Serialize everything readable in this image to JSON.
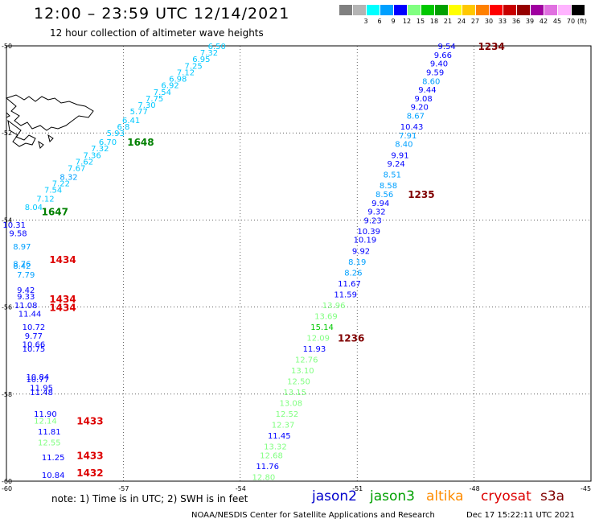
{
  "header": {
    "title": "12:00 – 23:59 UTC 12/14/2021",
    "subtitle": "12 hour collection of altimeter wave heights"
  },
  "colorbar": {
    "unit": "(ft)",
    "cells": [
      {
        "label": "",
        "color": "#808080"
      },
      {
        "label": "3",
        "color": "#b4b4b4"
      },
      {
        "label": "6",
        "color": "#00ffff"
      },
      {
        "label": "9",
        "color": "#00a0ff"
      },
      {
        "label": "12",
        "color": "#0000ff"
      },
      {
        "label": "15",
        "color": "#80ff80"
      },
      {
        "label": "18",
        "color": "#00c800"
      },
      {
        "label": "21",
        "color": "#00a000"
      },
      {
        "label": "24",
        "color": "#ffff00"
      },
      {
        "label": "27",
        "color": "#ffc800"
      },
      {
        "label": "30",
        "color": "#ff8000"
      },
      {
        "label": "33",
        "color": "#ff0000"
      },
      {
        "label": "36",
        "color": "#c80000"
      },
      {
        "label": "39",
        "color": "#960000"
      },
      {
        "label": "42",
        "color": "#a000a0"
      },
      {
        "label": "45",
        "color": "#e070e0"
      },
      {
        "label": "70",
        "color": "#ffb4ff"
      },
      {
        "label": "",
        "color": "#000000"
      }
    ]
  },
  "axes": {
    "lat_labels": [
      "-50",
      "-52",
      "-54",
      "-56",
      "-58",
      "-60"
    ],
    "lon_labels": [
      "-60",
      "-57",
      "-54",
      "-51",
      "-48",
      "-45"
    ],
    "lon_range": [
      -60,
      -45
    ],
    "lat_range": [
      -60,
      -50
    ],
    "grid": true
  },
  "footer": {
    "note": "note: 1) Time is in UTC; 2) SWH is in feet",
    "satellites": [
      {
        "name": "jason2",
        "color": "#0000cc"
      },
      {
        "name": "jason3",
        "color": "#00a000"
      },
      {
        "name": "altika",
        "color": "#ff8c00"
      },
      {
        "name": "cryosat",
        "color": "#dd0000"
      },
      {
        "name": "s3a",
        "color": "#800000"
      }
    ],
    "credit": "NOAA/NESDIS Center for Satellite Applications and Research",
    "timestamp": "Dec 17 15:22:11 UTC 2021"
  },
  "chart_data": {
    "type": "scatter",
    "title": "12:00 – 23:59 UTC 12/14/2021",
    "subtitle": "12 hour collection of altimeter wave heights",
    "units": "ft",
    "time_labels": [
      {
        "text": "1234",
        "lon": -47.9,
        "lat": -50.0,
        "color": "#800000"
      },
      {
        "text": "1235",
        "lon": -49.7,
        "lat": -53.4,
        "color": "#800000"
      },
      {
        "text": "1236",
        "lon": -51.5,
        "lat": -56.7,
        "color": "#800000"
      },
      {
        "text": "1648",
        "lon": -56.9,
        "lat": -52.2,
        "color": "#008000"
      },
      {
        "text": "1647",
        "lon": -59.1,
        "lat": -53.8,
        "color": "#008000"
      },
      {
        "text": "1434",
        "lon": -58.9,
        "lat": -54.9,
        "color": "#dd0000"
      },
      {
        "text": "1434",
        "lon": -58.9,
        "lat": -55.8,
        "color": "#dd0000"
      },
      {
        "text": "1434",
        "lon": -58.9,
        "lat": -56.0,
        "color": "#dd0000"
      },
      {
        "text": "1433",
        "lon": -58.2,
        "lat": -58.6,
        "color": "#dd0000"
      },
      {
        "text": "1433",
        "lon": -58.2,
        "lat": -59.4,
        "color": "#dd0000"
      },
      {
        "text": "1432",
        "lon": -58.2,
        "lat": -59.8,
        "color": "#dd0000"
      }
    ],
    "series": [
      {
        "name": "s3a",
        "points": [
          {
            "v": "9.54",
            "lon": -48.7,
            "lat": -50.0,
            "c": "#0000ff"
          },
          {
            "v": "9.66",
            "lon": -48.8,
            "lat": -50.2,
            "c": "#0000ff"
          },
          {
            "v": "9.40",
            "lon": -48.9,
            "lat": -50.4,
            "c": "#0000ff"
          },
          {
            "v": "9.59",
            "lon": -49.0,
            "lat": -50.6,
            "c": "#0000ff"
          },
          {
            "v": "8.60",
            "lon": -49.1,
            "lat": -50.8,
            "c": "#00a0ff"
          },
          {
            "v": "9.44",
            "lon": -49.2,
            "lat": -51.0,
            "c": "#0000ff"
          },
          {
            "v": "9.08",
            "lon": -49.3,
            "lat": -51.2,
            "c": "#0000ff"
          },
          {
            "v": "9.20",
            "lon": -49.4,
            "lat": -51.4,
            "c": "#0000ff"
          },
          {
            "v": "8.67",
            "lon": -49.5,
            "lat": -51.6,
            "c": "#00a0ff"
          },
          {
            "v": "10.43",
            "lon": -49.6,
            "lat": -51.85,
            "c": "#0000ff"
          },
          {
            "v": "7.91",
            "lon": -49.7,
            "lat": -52.05,
            "c": "#00a0ff"
          },
          {
            "v": "8.40",
            "lon": -49.8,
            "lat": -52.25,
            "c": "#00a0ff"
          },
          {
            "v": "9.91",
            "lon": -49.9,
            "lat": -52.5,
            "c": "#0000ff"
          },
          {
            "v": "9.24",
            "lon": -50.0,
            "lat": -52.7,
            "c": "#0000ff"
          },
          {
            "v": "8.51",
            "lon": -50.1,
            "lat": -52.95,
            "c": "#00a0ff"
          },
          {
            "v": "8.58",
            "lon": -50.2,
            "lat": -53.2,
            "c": "#00a0ff"
          },
          {
            "v": "8.56",
            "lon": -50.3,
            "lat": -53.4,
            "c": "#00a0ff"
          },
          {
            "v": "9.94",
            "lon": -50.4,
            "lat": -53.6,
            "c": "#0000ff"
          },
          {
            "v": "9.32",
            "lon": -50.5,
            "lat": -53.8,
            "c": "#0000ff"
          },
          {
            "v": "9.23",
            "lon": -50.6,
            "lat": -54.0,
            "c": "#0000ff"
          },
          {
            "v": "10.39",
            "lon": -50.7,
            "lat": -54.25,
            "c": "#0000ff"
          },
          {
            "v": "10.19",
            "lon": -50.8,
            "lat": -54.45,
            "c": "#0000ff"
          },
          {
            "v": "9.92",
            "lon": -50.9,
            "lat": -54.7,
            "c": "#0000ff"
          },
          {
            "v": "8.19",
            "lon": -51.0,
            "lat": -54.95,
            "c": "#00a0ff"
          },
          {
            "v": "8.26",
            "lon": -51.1,
            "lat": -55.2,
            "c": "#00a0ff"
          },
          {
            "v": "11.67",
            "lon": -51.2,
            "lat": -55.45,
            "c": "#0000ff"
          },
          {
            "v": "11.59",
            "lon": -51.3,
            "lat": -55.7,
            "c": "#0000ff"
          },
          {
            "v": "13.96",
            "lon": -51.6,
            "lat": -55.95,
            "c": "#80ff80"
          },
          {
            "v": "13.69",
            "lon": -51.8,
            "lat": -56.2,
            "c": "#80ff80"
          },
          {
            "v": "15.14",
            "lon": -51.9,
            "lat": -56.45,
            "c": "#00c800"
          },
          {
            "v": "12.09",
            "lon": -52.0,
            "lat": -56.7,
            "c": "#80ff80"
          },
          {
            "v": "11.93",
            "lon": -52.1,
            "lat": -56.95,
            "c": "#0000ff"
          },
          {
            "v": "12.76",
            "lon": -52.3,
            "lat": -57.2,
            "c": "#80ff80"
          },
          {
            "v": "13.10",
            "lon": -52.4,
            "lat": -57.45,
            "c": "#80ff80"
          },
          {
            "v": "12.50",
            "lon": -52.5,
            "lat": -57.7,
            "c": "#80ff80"
          },
          {
            "v": "13.15",
            "lon": -52.6,
            "lat": -57.95,
            "c": "#80ff80"
          },
          {
            "v": "13.08",
            "lon": -52.7,
            "lat": -58.2,
            "c": "#80ff80"
          },
          {
            "v": "12.52",
            "lon": -52.8,
            "lat": -58.45,
            "c": "#80ff80"
          },
          {
            "v": "12.37",
            "lon": -52.9,
            "lat": -58.7,
            "c": "#80ff80"
          },
          {
            "v": "11.45",
            "lon": -53.0,
            "lat": -58.95,
            "c": "#0000ff"
          },
          {
            "v": "13.32",
            "lon": -53.1,
            "lat": -59.2,
            "c": "#80ff80"
          },
          {
            "v": "12.68",
            "lon": -53.2,
            "lat": -59.4,
            "c": "#80ff80"
          },
          {
            "v": "11.76",
            "lon": -53.3,
            "lat": -59.65,
            "c": "#0000ff"
          },
          {
            "v": "12.80",
            "lon": -53.4,
            "lat": -59.9,
            "c": "#80ff80"
          }
        ]
      },
      {
        "name": "jason3",
        "points": [
          {
            "v": "6.50",
            "lon": -54.6,
            "lat": -50.0,
            "c": "#00c8ff"
          },
          {
            "v": "7.32",
            "lon": -54.8,
            "lat": -50.15,
            "c": "#00c8ff"
          },
          {
            "v": "6.95",
            "lon": -55.0,
            "lat": -50.3,
            "c": "#00c8ff"
          },
          {
            "v": "7.25",
            "lon": -55.2,
            "lat": -50.45,
            "c": "#00c8ff"
          },
          {
            "v": "7.12",
            "lon": -55.4,
            "lat": -50.6,
            "c": "#00c8ff"
          },
          {
            "v": "6.98",
            "lon": -55.6,
            "lat": -50.75,
            "c": "#00c8ff"
          },
          {
            "v": "6.92",
            "lon": -55.8,
            "lat": -50.9,
            "c": "#00c8ff"
          },
          {
            "v": "7.54",
            "lon": -56.0,
            "lat": -51.05,
            "c": "#00c8ff"
          },
          {
            "v": "7.75",
            "lon": -56.2,
            "lat": -51.2,
            "c": "#00c8ff"
          },
          {
            "v": "7.30",
            "lon": -56.4,
            "lat": -51.35,
            "c": "#00c8ff"
          },
          {
            "v": "5.77",
            "lon": -56.6,
            "lat": -51.5,
            "c": "#00c8ff"
          },
          {
            "v": "6.41",
            "lon": -56.8,
            "lat": -51.7,
            "c": "#00c8ff"
          },
          {
            "v": "6.8",
            "lon": -57.0,
            "lat": -51.85,
            "c": "#00c8ff"
          },
          {
            "v": "5.93",
            "lon": -57.2,
            "lat": -52.0,
            "c": "#00c8ff"
          },
          {
            "v": "6.70",
            "lon": -57.4,
            "lat": -52.2,
            "c": "#00c8ff"
          },
          {
            "v": "7.32",
            "lon": -57.6,
            "lat": -52.35,
            "c": "#00c8ff"
          },
          {
            "v": "7.36",
            "lon": -57.8,
            "lat": -52.5,
            "c": "#00c8ff"
          },
          {
            "v": "7.62",
            "lon": -58.0,
            "lat": -52.65,
            "c": "#00c8ff"
          },
          {
            "v": "7.67",
            "lon": -58.2,
            "lat": -52.8,
            "c": "#00c8ff"
          },
          {
            "v": "8.32",
            "lon": -58.4,
            "lat": -53.0,
            "c": "#00a0ff"
          },
          {
            "v": "7.22",
            "lon": -58.6,
            "lat": -53.15,
            "c": "#00c8ff"
          },
          {
            "v": "7.54",
            "lon": -58.8,
            "lat": -53.3,
            "c": "#00c8ff"
          },
          {
            "v": "7.12",
            "lon": -59.0,
            "lat": -53.5,
            "c": "#00c8ff"
          },
          {
            "v": "8.04",
            "lon": -59.3,
            "lat": -53.7,
            "c": "#00c8ff"
          }
        ]
      },
      {
        "name": "cryosat",
        "points": [
          {
            "v": "10.31",
            "lon": -59.8,
            "lat": -54.1,
            "c": "#0000ff"
          },
          {
            "v": "9.58",
            "lon": -59.7,
            "lat": -54.3,
            "c": "#0000ff"
          },
          {
            "v": "8.97",
            "lon": -59.6,
            "lat": -54.6,
            "c": "#00a0ff"
          },
          {
            "v": "8.76",
            "lon": -59.6,
            "lat": -55.0,
            "c": "#00a0ff"
          },
          {
            "v": "8.42",
            "lon": -59.6,
            "lat": -55.05,
            "c": "#00a0ff"
          },
          {
            "v": "7.79",
            "lon": -59.5,
            "lat": -55.25,
            "c": "#00a0ff"
          },
          {
            "v": "9.42",
            "lon": -59.5,
            "lat": -55.6,
            "c": "#0000ff"
          },
          {
            "v": "9.33",
            "lon": -59.5,
            "lat": -55.75,
            "c": "#0000ff"
          },
          {
            "v": "11.08",
            "lon": -59.5,
            "lat": -55.95,
            "c": "#0000ff"
          },
          {
            "v": "11.44",
            "lon": -59.4,
            "lat": -56.15,
            "c": "#0000ff"
          },
          {
            "v": "10.72",
            "lon": -59.3,
            "lat": -56.45,
            "c": "#0000ff"
          },
          {
            "v": "9.77",
            "lon": -59.3,
            "lat": -56.65,
            "c": "#0000ff"
          },
          {
            "v": "10.66",
            "lon": -59.3,
            "lat": -56.85,
            "c": "#0000ff"
          },
          {
            "v": "10.75",
            "lon": -59.3,
            "lat": -56.95,
            "c": "#0000ff"
          },
          {
            "v": "10.84",
            "lon": -59.2,
            "lat": -57.6,
            "c": "#0000ff"
          },
          {
            "v": "10.77",
            "lon": -59.2,
            "lat": -57.65,
            "c": "#0000ff"
          },
          {
            "v": "11.95",
            "lon": -59.1,
            "lat": -57.85,
            "c": "#0000ff"
          },
          {
            "v": "11.48",
            "lon": -59.1,
            "lat": -57.95,
            "c": "#0000ff"
          },
          {
            "v": "11.90",
            "lon": -59.0,
            "lat": -58.45,
            "c": "#0000ff"
          },
          {
            "v": "12.14",
            "lon": -59.0,
            "lat": -58.6,
            "c": "#80ff80"
          },
          {
            "v": "11.81",
            "lon": -58.9,
            "lat": -58.85,
            "c": "#0000ff"
          },
          {
            "v": "12.55",
            "lon": -58.9,
            "lat": -59.1,
            "c": "#80ff80"
          },
          {
            "v": "11.25",
            "lon": -58.8,
            "lat": -59.45,
            "c": "#0000ff"
          },
          {
            "v": "10.84",
            "lon": -58.8,
            "lat": -59.85,
            "c": "#0000ff"
          }
        ]
      }
    ]
  }
}
